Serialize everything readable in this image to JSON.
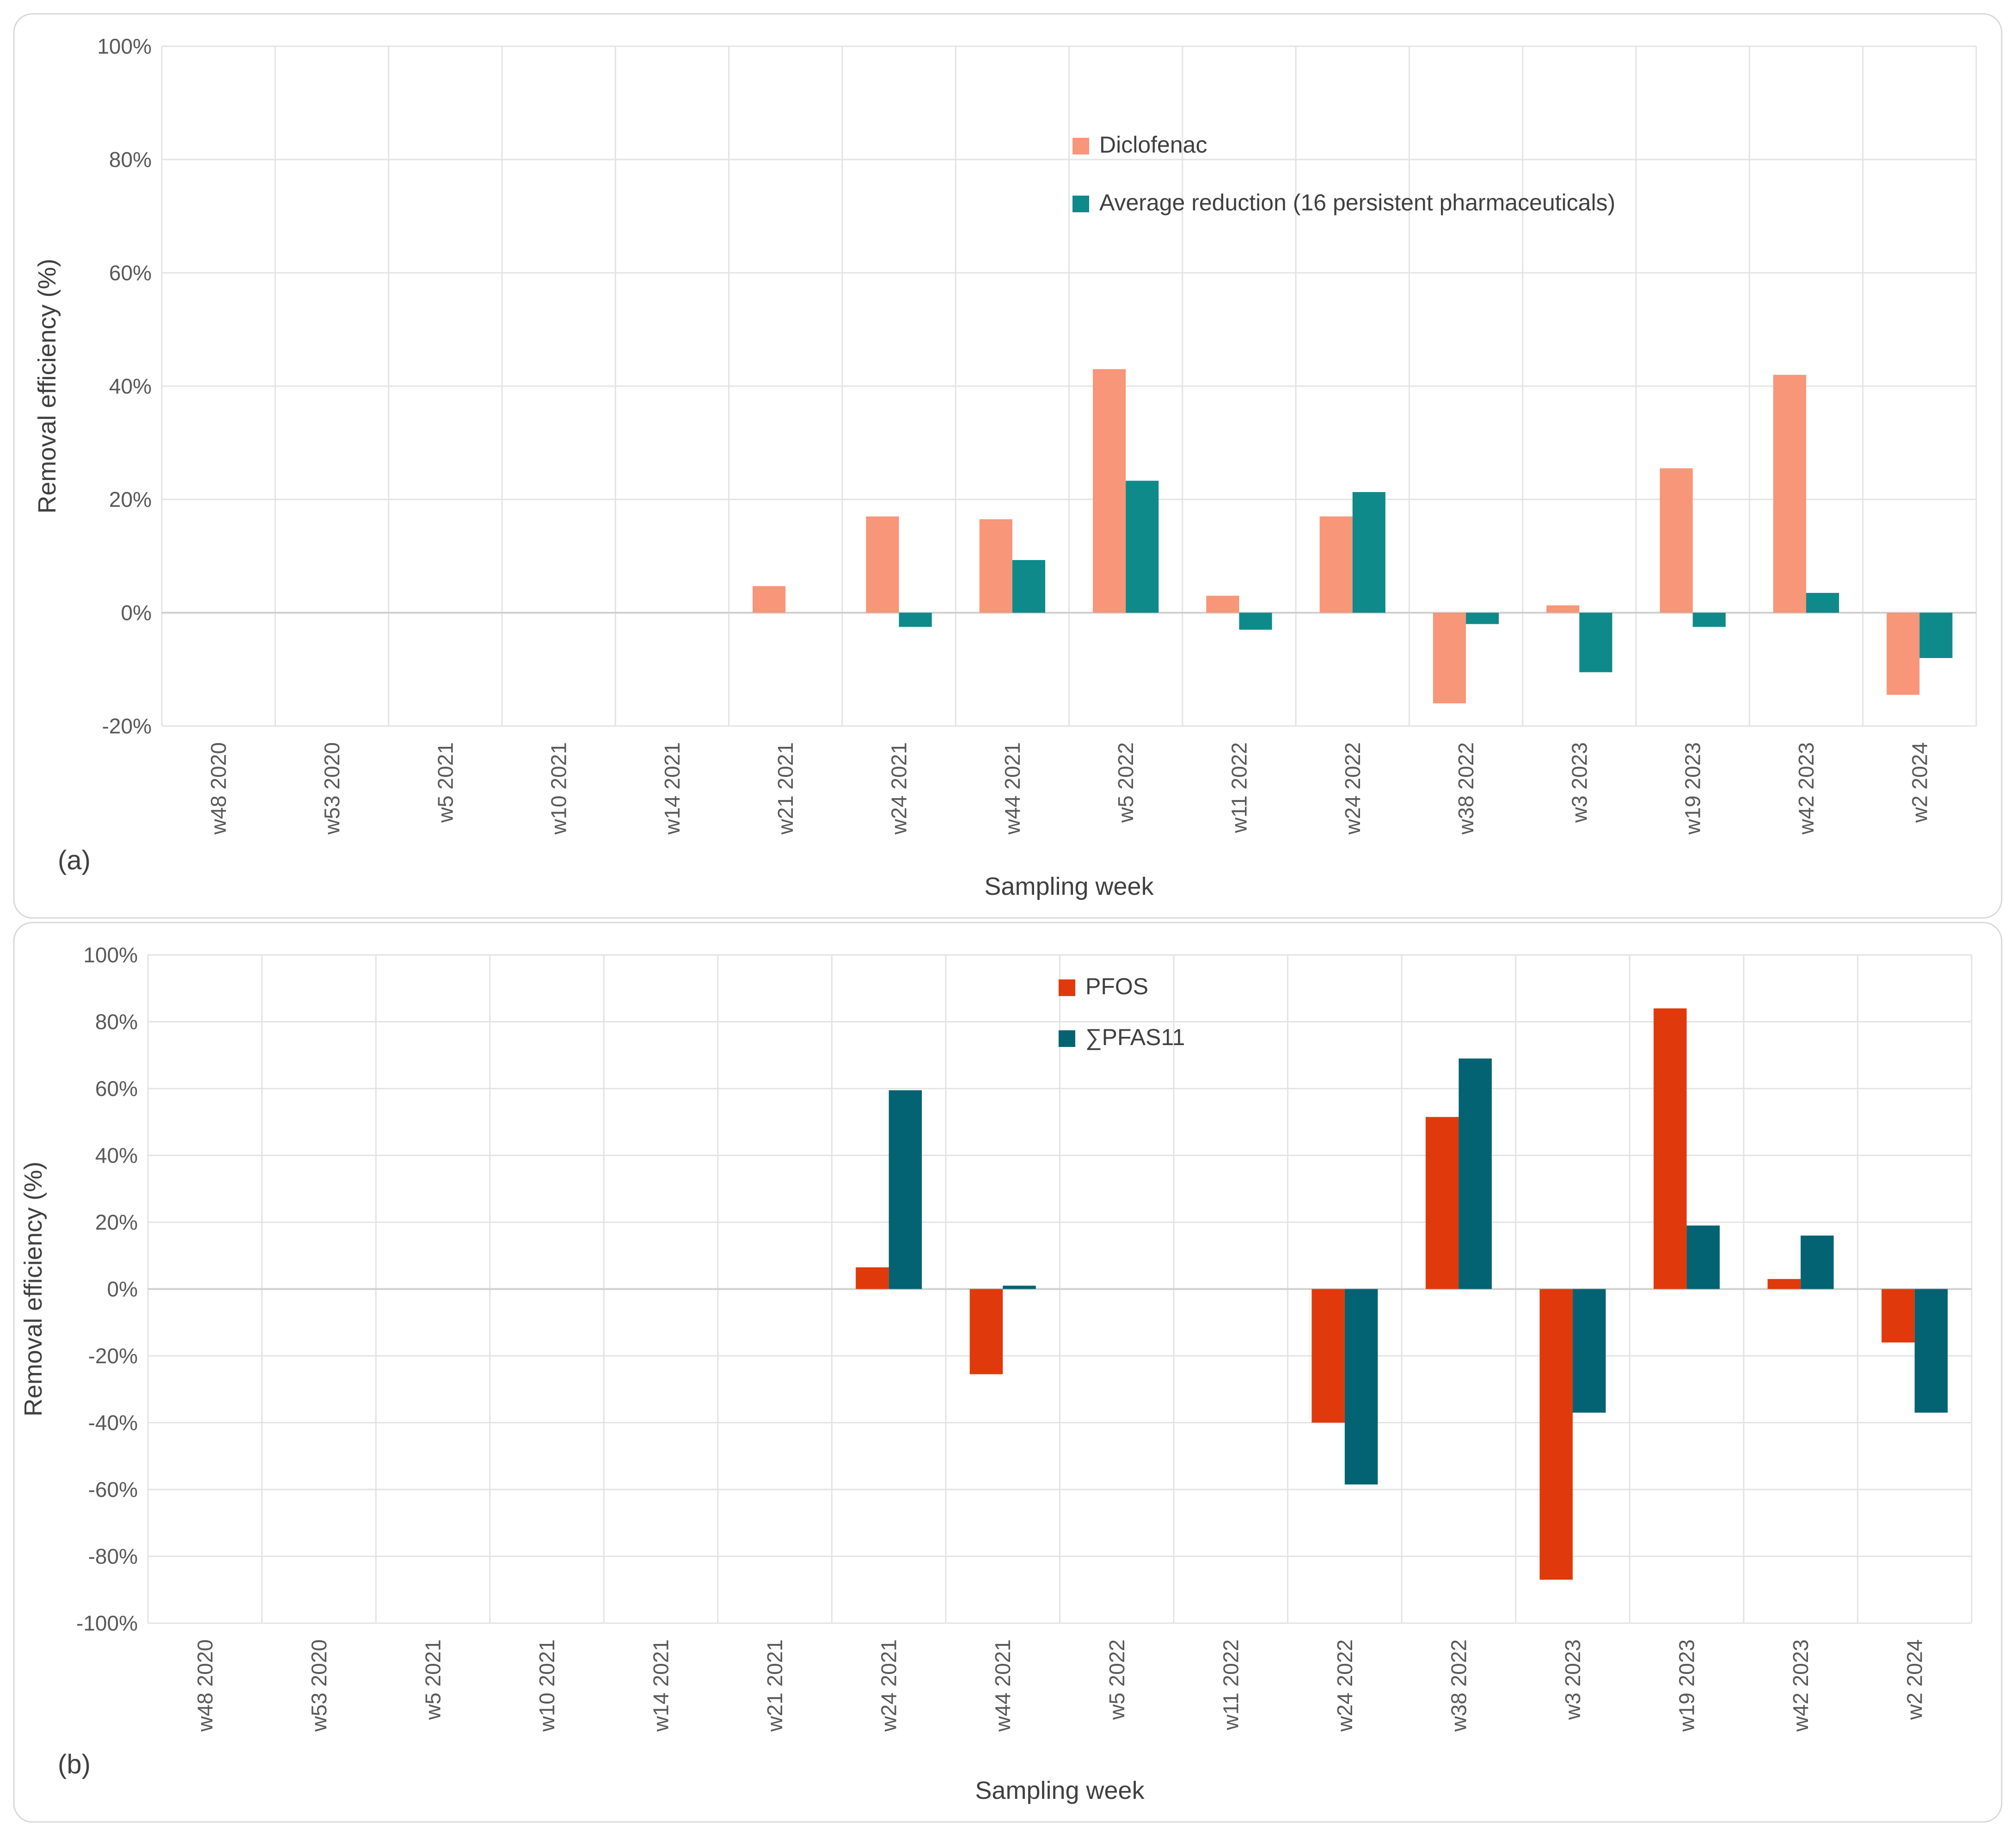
{
  "chart_data": [
    {
      "type": "bar",
      "panel_label": "(a)",
      "xlabel": "Sampling week",
      "ylabel": "Removal efficiency (%)",
      "ylim": [
        -20,
        100
      ],
      "ytick_step": 20,
      "ytick_labels": [
        "-20%",
        "0%",
        "20%",
        "40%",
        "60%",
        "80%",
        "100%"
      ],
      "grid": true,
      "legend_position": "top-center",
      "categories": [
        "w48 2020",
        "w53 2020",
        "w5 2021",
        "w10 2021",
        "w14 2021",
        "w21 2021",
        "w24 2021",
        "w44 2021",
        "w5 2022",
        "w11 2022",
        "w24 2022",
        "w38 2022",
        "w3 2023",
        "w19 2023",
        "w42 2023",
        "w2 2024"
      ],
      "series": [
        {
          "name": "Diclofenac",
          "color": "#f79679",
          "values": [
            null,
            null,
            null,
            null,
            null,
            4.7,
            17,
            16.5,
            43,
            3,
            17,
            -16,
            1.3,
            25.5,
            42,
            -14.5
          ]
        },
        {
          "name": "Average reduction (16 persistent pharmaceuticals)",
          "color": "#0e8a8a",
          "values": [
            null,
            null,
            null,
            null,
            null,
            null,
            -2.5,
            9.3,
            23.3,
            -3,
            21.3,
            -2,
            -10.5,
            -2.5,
            3.5,
            -8
          ]
        }
      ]
    },
    {
      "type": "bar",
      "panel_label": "(b)",
      "xlabel": "Sampling week",
      "ylabel": "Removal efficiency (%)",
      "ylim": [
        -100,
        100
      ],
      "ytick_step": 20,
      "ytick_labels": [
        "-100%",
        "-80%",
        "-60%",
        "-40%",
        "-20%",
        "0%",
        "20%",
        "40%",
        "60%",
        "80%",
        "100%"
      ],
      "grid": true,
      "legend_position": "top-center",
      "categories": [
        "w48 2020",
        "w53 2020",
        "w5 2021",
        "w10 2021",
        "w14 2021",
        "w21 2021",
        "w24 2021",
        "w44 2021",
        "w5 2022",
        "w11 2022",
        "w24 2022",
        "w38 2022",
        "w3 2023",
        "w19 2023",
        "w42 2023",
        "w2 2024"
      ],
      "series": [
        {
          "name": "PFOS",
          "color": "#e03a0c",
          "values": [
            null,
            null,
            null,
            null,
            null,
            null,
            6.5,
            -25.5,
            null,
            null,
            -40,
            51.5,
            -87,
            84,
            3,
            -16
          ]
        },
        {
          "name": "∑PFAS11",
          "color": "#046373",
          "values": [
            null,
            null,
            null,
            null,
            null,
            null,
            59.5,
            1,
            null,
            null,
            -58.5,
            69,
            -37,
            19,
            16,
            -37
          ]
        }
      ]
    }
  ]
}
